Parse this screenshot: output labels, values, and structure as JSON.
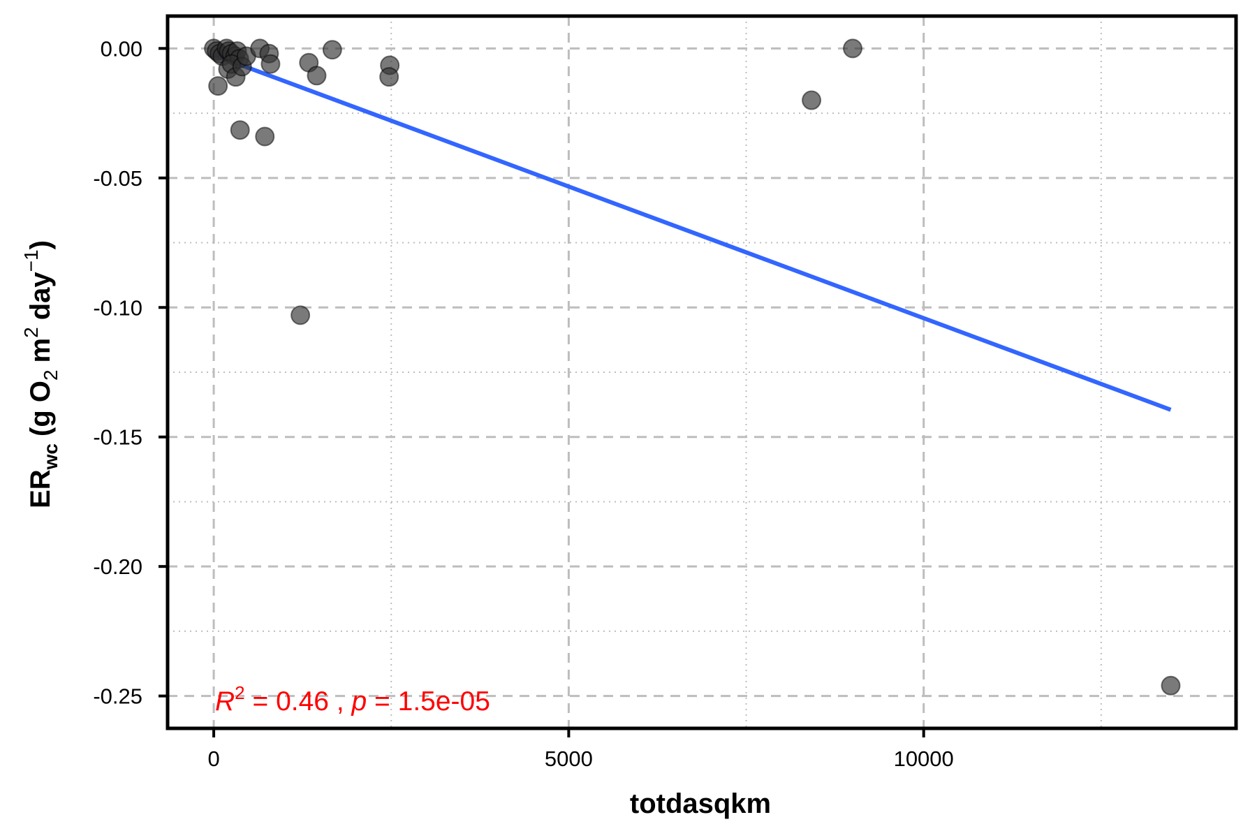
{
  "chart_data": {
    "type": "scatter",
    "title": "",
    "xlabel": "totdasqkm",
    "ylabel": {
      "main": "ER",
      "subscript": "wc",
      "units_open": "(g O",
      "o2_subscript": "2",
      "m_text": "m",
      "m_superscript": "2",
      "day_text": "day",
      "day_superscript": "−1",
      "units_close": ")"
    },
    "xlim": [
      -650,
      14400
    ],
    "ylim": [
      -0.2625,
      0.0125
    ],
    "x_major_ticks": [
      0,
      5000,
      10000
    ],
    "x_tick_labels": [
      "0",
      "5000",
      "10000"
    ],
    "x_minor_ticks": [
      2500,
      7500,
      12500
    ],
    "y_major_ticks": [
      0.0,
      -0.05,
      -0.1,
      -0.15,
      -0.2,
      -0.25
    ],
    "y_tick_labels": [
      "0.00",
      "-0.05",
      "-0.10",
      "-0.15",
      "-0.20",
      "-0.25"
    ],
    "y_minor_ticks": [
      -0.025,
      -0.075,
      -0.125,
      -0.175,
      -0.225
    ],
    "grid": true,
    "points": [
      {
        "x": 0,
        "y": 0.0
      },
      {
        "x": 40,
        "y": -0.001
      },
      {
        "x": 80,
        "y": -0.002
      },
      {
        "x": 120,
        "y": -0.003
      },
      {
        "x": 180,
        "y": 0.0
      },
      {
        "x": 210,
        "y": -0.001
      },
      {
        "x": 250,
        "y": -0.002
      },
      {
        "x": 300,
        "y": -0.003
      },
      {
        "x": 330,
        "y": -0.001
      },
      {
        "x": 360,
        "y": -0.004
      },
      {
        "x": 200,
        "y": -0.008
      },
      {
        "x": 250,
        "y": -0.006
      },
      {
        "x": 310,
        "y": -0.011
      },
      {
        "x": 400,
        "y": -0.007
      },
      {
        "x": 460,
        "y": -0.003
      },
      {
        "x": 60,
        "y": -0.0145
      },
      {
        "x": 370,
        "y": -0.0315
      },
      {
        "x": 650,
        "y": 0.0
      },
      {
        "x": 780,
        "y": -0.002
      },
      {
        "x": 800,
        "y": -0.006
      },
      {
        "x": 720,
        "y": -0.034
      },
      {
        "x": 1220,
        "y": -0.103
      },
      {
        "x": 1340,
        "y": -0.0055
      },
      {
        "x": 1450,
        "y": -0.0105
      },
      {
        "x": 1670,
        "y": -0.0005
      },
      {
        "x": 2480,
        "y": -0.0065
      },
      {
        "x": 2470,
        "y": -0.011
      },
      {
        "x": 8420,
        "y": -0.02
      },
      {
        "x": 9000,
        "y": 0.0
      },
      {
        "x": 13480,
        "y": -0.246
      }
    ],
    "point_color": "#333333",
    "trend_line": {
      "x": [
        0,
        13480
      ],
      "y": [
        -0.0025,
        -0.1395
      ],
      "color": "#3366FF"
    },
    "annotation": {
      "r_label": "R",
      "r_superscript": "2",
      "r_value_text": " = 0.46 , ",
      "p_label": "p",
      "p_value_text": " = 1.5e-05",
      "color": "#FF0000"
    }
  }
}
